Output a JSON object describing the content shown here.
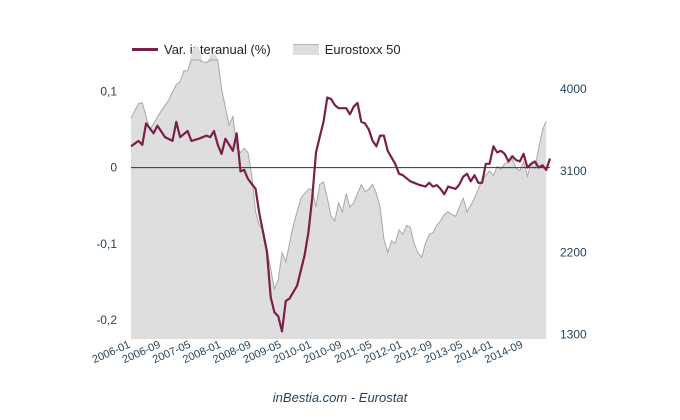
{
  "chart_data": {
    "type": "line",
    "title": "",
    "xlabel": "",
    "ylabel": "",
    "y2label": "",
    "source": "inBestia.com - Eurostat",
    "x_tick_labels": [
      "2006-01",
      "2006-09",
      "2007-05",
      "2008-01",
      "2008-09",
      "2009-05",
      "2010-01",
      "2010-09",
      "2011-05",
      "2012-01",
      "2012-09",
      "2013-05",
      "2014-01",
      "2014-09"
    ],
    "ylim_left": [
      -0.225,
      0.115
    ],
    "ylim_right": [
      1250,
      4100
    ],
    "y_ticks_left": [
      {
        "v": 0.1,
        "label": "0,1"
      },
      {
        "v": 0,
        "label": "0"
      },
      {
        "v": -0.1,
        "label": "-0,1"
      },
      {
        "v": -0.2,
        "label": "-0,2"
      }
    ],
    "y_ticks_right": [
      {
        "v": 4000,
        "label": "4000"
      },
      {
        "v": 3100,
        "label": "3100"
      },
      {
        "v": 2200,
        "label": "2200"
      },
      {
        "v": 1300,
        "label": "1300"
      }
    ],
    "legend_position": "top-left",
    "series": [
      {
        "name": "Var. interanual (%)",
        "axis": "left",
        "kind": "line",
        "color": "#7a1f4a",
        "points": [
          [
            "2006-01",
            0.028
          ],
          [
            "2006-03",
            0.035
          ],
          [
            "2006-04",
            0.03
          ],
          [
            "2006-05",
            0.058
          ],
          [
            "2006-07",
            0.045
          ],
          [
            "2006-08",
            0.055
          ],
          [
            "2006-10",
            0.04
          ],
          [
            "2006-12",
            0.035
          ],
          [
            "2007-01",
            0.06
          ],
          [
            "2007-02",
            0.04
          ],
          [
            "2007-04",
            0.048
          ],
          [
            "2007-05",
            0.035
          ],
          [
            "2007-07",
            0.038
          ],
          [
            "2007-09",
            0.042
          ],
          [
            "2007-10",
            0.04
          ],
          [
            "2007-11",
            0.048
          ],
          [
            "2007-12",
            0.03
          ],
          [
            "2008-01",
            0.018
          ],
          [
            "2008-02",
            0.038
          ],
          [
            "2008-04",
            0.022
          ],
          [
            "2008-05",
            0.045
          ],
          [
            "2008-06",
            -0.005
          ],
          [
            "2008-07",
            -0.003
          ],
          [
            "2008-08",
            -0.015
          ],
          [
            "2008-10",
            -0.028
          ],
          [
            "2008-11",
            -0.06
          ],
          [
            "2009-01",
            -0.11
          ],
          [
            "2009-02",
            -0.17
          ],
          [
            "2009-03",
            -0.19
          ],
          [
            "2009-04",
            -0.195
          ],
          [
            "2009-05",
            -0.215
          ],
          [
            "2009-06",
            -0.175
          ],
          [
            "2009-07",
            -0.172
          ],
          [
            "2009-09",
            -0.155
          ],
          [
            "2009-11",
            -0.115
          ],
          [
            "2009-12",
            -0.085
          ],
          [
            "2010-01",
            -0.04
          ],
          [
            "2010-02",
            0.02
          ],
          [
            "2010-03",
            0.04
          ],
          [
            "2010-04",
            0.06
          ],
          [
            "2010-05",
            0.092
          ],
          [
            "2010-06",
            0.09
          ],
          [
            "2010-07",
            0.082
          ],
          [
            "2010-08",
            0.078
          ],
          [
            "2010-10",
            0.078
          ],
          [
            "2010-11",
            0.07
          ],
          [
            "2010-12",
            0.08
          ],
          [
            "2011-01",
            0.085
          ],
          [
            "2011-02",
            0.06
          ],
          [
            "2011-03",
            0.058
          ],
          [
            "2011-04",
            0.05
          ],
          [
            "2011-05",
            0.035
          ],
          [
            "2011-06",
            0.028
          ],
          [
            "2011-07",
            0.042
          ],
          [
            "2011-08",
            0.042
          ],
          [
            "2011-09",
            0.022
          ],
          [
            "2011-11",
            0.005
          ],
          [
            "2011-12",
            -0.008
          ],
          [
            "2012-01",
            -0.01
          ],
          [
            "2012-03",
            -0.018
          ],
          [
            "2012-04",
            -0.02
          ],
          [
            "2012-05",
            -0.022
          ],
          [
            "2012-07",
            -0.025
          ],
          [
            "2012-08",
            -0.02
          ],
          [
            "2012-09",
            -0.025
          ],
          [
            "2012-10",
            -0.023
          ],
          [
            "2012-11",
            -0.028
          ],
          [
            "2012-12",
            -0.035
          ],
          [
            "2013-01",
            -0.025
          ],
          [
            "2013-03",
            -0.028
          ],
          [
            "2013-04",
            -0.022
          ],
          [
            "2013-05",
            -0.012
          ],
          [
            "2013-06",
            -0.008
          ],
          [
            "2013-07",
            -0.018
          ],
          [
            "2013-08",
            -0.01
          ],
          [
            "2013-09",
            -0.02
          ],
          [
            "2013-10",
            -0.02
          ],
          [
            "2013-11",
            0.005
          ],
          [
            "2013-12",
            0.005
          ],
          [
            "2014-01",
            0.028
          ],
          [
            "2014-02",
            0.02
          ],
          [
            "2014-03",
            0.022
          ],
          [
            "2014-04",
            0.018
          ],
          [
            "2014-05",
            0.008
          ],
          [
            "2014-06",
            0.015
          ],
          [
            "2014-07",
            0.01
          ],
          [
            "2014-08",
            0.008
          ],
          [
            "2014-09",
            0.018
          ],
          [
            "2014-10",
            0.0
          ],
          [
            "2014-11",
            0.005
          ],
          [
            "2014-12",
            0.008
          ],
          [
            "2015-01",
            0.0
          ],
          [
            "2015-02",
            0.003
          ],
          [
            "2015-03",
            -0.003
          ],
          [
            "2015-04",
            0.012
          ]
        ]
      },
      {
        "name": "Eurostoxx 50",
        "axis": "right",
        "kind": "area",
        "color": "#dedede",
        "stroke": "#a8a8a8",
        "points": [
          [
            "2006-01",
            3680
          ],
          [
            "2006-03",
            3840
          ],
          [
            "2006-04",
            3850
          ],
          [
            "2006-05",
            3700
          ],
          [
            "2006-06",
            3550
          ],
          [
            "2006-07",
            3620
          ],
          [
            "2006-09",
            3760
          ],
          [
            "2006-11",
            3880
          ],
          [
            "2007-01",
            4050
          ],
          [
            "2007-02",
            4080
          ],
          [
            "2007-03",
            4200
          ],
          [
            "2007-04",
            4200
          ],
          [
            "2007-05",
            4400
          ],
          [
            "2007-06",
            4480
          ],
          [
            "2007-07",
            4460
          ],
          [
            "2007-08",
            4300
          ],
          [
            "2007-09",
            4290
          ],
          [
            "2007-10",
            4370
          ],
          [
            "2007-11",
            4400
          ],
          [
            "2007-12",
            4340
          ],
          [
            "2008-01",
            4000
          ],
          [
            "2008-02",
            3800
          ],
          [
            "2008-03",
            3600
          ],
          [
            "2008-04",
            3700
          ],
          [
            "2008-05",
            3350
          ],
          [
            "2008-06",
            3300
          ],
          [
            "2008-07",
            3350
          ],
          [
            "2008-08",
            3300
          ],
          [
            "2008-09",
            3050
          ],
          [
            "2008-10",
            2650
          ],
          [
            "2008-11",
            2500
          ],
          [
            "2008-12",
            2450
          ],
          [
            "2009-01",
            2250
          ],
          [
            "2009-02",
            2020
          ],
          [
            "2009-03",
            1800
          ],
          [
            "2009-04",
            1900
          ],
          [
            "2009-05",
            2200
          ],
          [
            "2009-06",
            2100
          ],
          [
            "2009-07",
            2300
          ],
          [
            "2009-08",
            2500
          ],
          [
            "2009-09",
            2650
          ],
          [
            "2009-10",
            2800
          ],
          [
            "2009-11",
            2850
          ],
          [
            "2009-12",
            2900
          ],
          [
            "2010-01",
            2900
          ],
          [
            "2010-02",
            2700
          ],
          [
            "2010-03",
            2950
          ],
          [
            "2010-04",
            2980
          ],
          [
            "2010-05",
            2800
          ],
          [
            "2010-06",
            2600
          ],
          [
            "2010-07",
            2550
          ],
          [
            "2010-08",
            2750
          ],
          [
            "2010-09",
            2650
          ],
          [
            "2010-10",
            2850
          ],
          [
            "2010-11",
            2700
          ],
          [
            "2010-12",
            2750
          ],
          [
            "2011-01",
            2850
          ],
          [
            "2011-02",
            2950
          ],
          [
            "2011-03",
            2870
          ],
          [
            "2011-04",
            2900
          ],
          [
            "2011-05",
            2950
          ],
          [
            "2011-06",
            2850
          ],
          [
            "2011-07",
            2700
          ],
          [
            "2011-08",
            2350
          ],
          [
            "2011-09",
            2200
          ],
          [
            "2011-10",
            2330
          ],
          [
            "2011-11",
            2300
          ],
          [
            "2011-12",
            2450
          ],
          [
            "2012-01",
            2400
          ],
          [
            "2012-02",
            2500
          ],
          [
            "2012-03",
            2480
          ],
          [
            "2012-04",
            2300
          ],
          [
            "2012-05",
            2200
          ],
          [
            "2012-06",
            2150
          ],
          [
            "2012-07",
            2300
          ],
          [
            "2012-08",
            2400
          ],
          [
            "2012-09",
            2420
          ],
          [
            "2012-10",
            2500
          ],
          [
            "2012-11",
            2550
          ],
          [
            "2012-12",
            2620
          ],
          [
            "2013-01",
            2650
          ],
          [
            "2013-02",
            2620
          ],
          [
            "2013-03",
            2600
          ],
          [
            "2013-04",
            2700
          ],
          [
            "2013-05",
            2800
          ],
          [
            "2013-06",
            2650
          ],
          [
            "2013-07",
            2720
          ],
          [
            "2013-08",
            2800
          ],
          [
            "2013-09",
            2900
          ],
          [
            "2013-10",
            3000
          ],
          [
            "2013-11",
            3050
          ],
          [
            "2013-12",
            3100
          ],
          [
            "2014-01",
            3050
          ],
          [
            "2014-02",
            3150
          ],
          [
            "2014-03",
            3120
          ],
          [
            "2014-04",
            3180
          ],
          [
            "2014-05",
            3200
          ],
          [
            "2014-06",
            3230
          ],
          [
            "2014-07",
            3130
          ],
          [
            "2014-08",
            3100
          ],
          [
            "2014-09",
            3200
          ],
          [
            "2014-10",
            3040
          ],
          [
            "2014-11",
            3180
          ],
          [
            "2014-12",
            3130
          ],
          [
            "2015-01",
            3350
          ],
          [
            "2015-02",
            3550
          ],
          [
            "2015-03",
            3650
          ]
        ]
      }
    ]
  }
}
